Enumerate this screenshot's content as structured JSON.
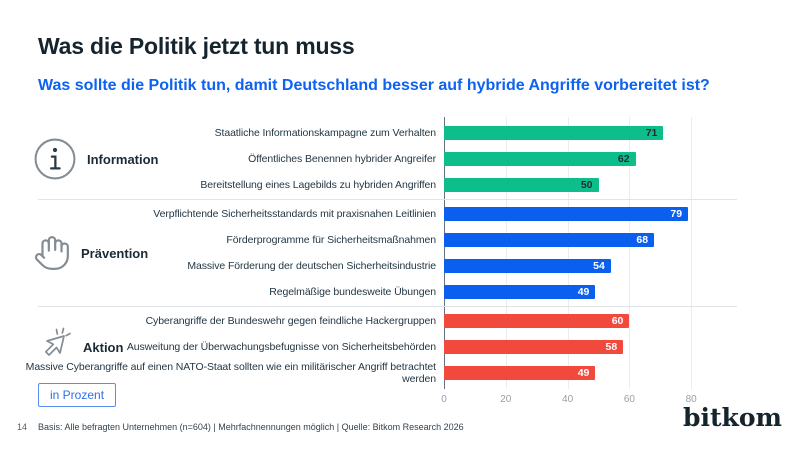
{
  "page": {
    "title": "Was die Politik jetzt tun muss",
    "subtitle": "Was sollte die Politik tun, damit Deutschland besser auf hybride Angriffe vorbereitet ist?",
    "unit_label": "in Prozent",
    "page_number": "14",
    "footnote": "Basis: Alle befragten Unternehmen (n=604) | Mehrfachnennungen möglich | Quelle: Bitkom Research 2026",
    "brand": "bitkom"
  },
  "colors": {
    "title": "#16242e",
    "subtitle_blue": "#0d62f0",
    "green": "#0dbe8a",
    "blue": "#0b5fee",
    "red": "#f2493d",
    "dark_value_label": "#1b2b36",
    "white_value_label": "#ffffff",
    "icon_gray": "#848d94"
  },
  "chart_data": {
    "type": "bar",
    "orientation": "horizontal",
    "unit": "percent",
    "xlim": [
      0,
      95
    ],
    "axis_ticks": [
      0,
      20,
      40,
      60,
      80
    ],
    "grid": true,
    "groups": [
      {
        "name": "Information",
        "icon": "info-icon",
        "color": "#0dbe8a",
        "value_label_color": "#1b2b36",
        "items": [
          {
            "label": "Staatliche Informationskampagne zum Verhalten",
            "value": 71
          },
          {
            "label": "Öffentliches Benennen hybrider Angreifer",
            "value": 62
          },
          {
            "label": "Bereitstellung eines Lagebilds zu hybriden Angriffen",
            "value": 50
          }
        ]
      },
      {
        "name": "Prävention",
        "icon": "hand-icon",
        "color": "#0b5fee",
        "value_label_color": "#ffffff",
        "items": [
          {
            "label": "Verpflichtende Sicherheitsstandards mit praxisnahen Leitlinien",
            "value": 79
          },
          {
            "label": "Förderprogramme für Sicherheitsmaßnahmen",
            "value": 68
          },
          {
            "label": "Massive Förderung der deutschen Sicherheitsindustrie",
            "value": 54
          },
          {
            "label": "Regelmäßige bundesweite Übungen",
            "value": 49
          }
        ]
      },
      {
        "name": "Aktion",
        "icon": "click-icon",
        "color": "#f2493d",
        "value_label_color": "#ffffff",
        "items": [
          {
            "label": "Cyberangriffe der Bundeswehr gegen feindliche Hackergruppen",
            "value": 60
          },
          {
            "label": "Ausweitung der Überwachungsbefugnisse von Sicherheitsbehörden",
            "value": 58
          },
          {
            "label": "Massive Cyberangriffe auf einen NATO-Staat sollten wie ein militärischer Angriff betrachtet werden",
            "value": 49
          }
        ]
      }
    ]
  }
}
